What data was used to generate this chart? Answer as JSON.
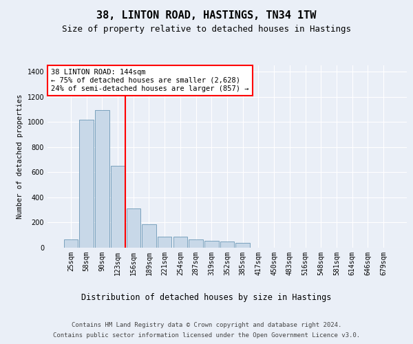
{
  "title": "38, LINTON ROAD, HASTINGS, TN34 1TW",
  "subtitle": "Size of property relative to detached houses in Hastings",
  "xlabel": "Distribution of detached houses by size in Hastings",
  "ylabel": "Number of detached properties",
  "footer_line1": "Contains HM Land Registry data © Crown copyright and database right 2024.",
  "footer_line2": "Contains public sector information licensed under the Open Government Licence v3.0.",
  "annotation_line1": "38 LINTON ROAD: 144sqm",
  "annotation_line2": "← 75% of detached houses are smaller (2,628)",
  "annotation_line3": "24% of semi-detached houses are larger (857) →",
  "bar_labels": [
    "25sqm",
    "58sqm",
    "90sqm",
    "123sqm",
    "156sqm",
    "189sqm",
    "221sqm",
    "254sqm",
    "287sqm",
    "319sqm",
    "352sqm",
    "385sqm",
    "417sqm",
    "450sqm",
    "483sqm",
    "516sqm",
    "548sqm",
    "581sqm",
    "614sqm",
    "646sqm",
    "679sqm"
  ],
  "bar_values": [
    65,
    1020,
    1095,
    650,
    310,
    185,
    90,
    90,
    65,
    55,
    50,
    40,
    0,
    0,
    0,
    0,
    0,
    0,
    0,
    0,
    0
  ],
  "bar_color": "#c8d8e8",
  "bar_edge_color": "#5588aa",
  "red_line_x": 3.5,
  "ylim": [
    0,
    1450
  ],
  "yticks": [
    0,
    200,
    400,
    600,
    800,
    1000,
    1200,
    1400
  ],
  "bg_color": "#eaeff7",
  "plot_bg_color": "#eaeff7",
  "grid_color": "#ffffff"
}
